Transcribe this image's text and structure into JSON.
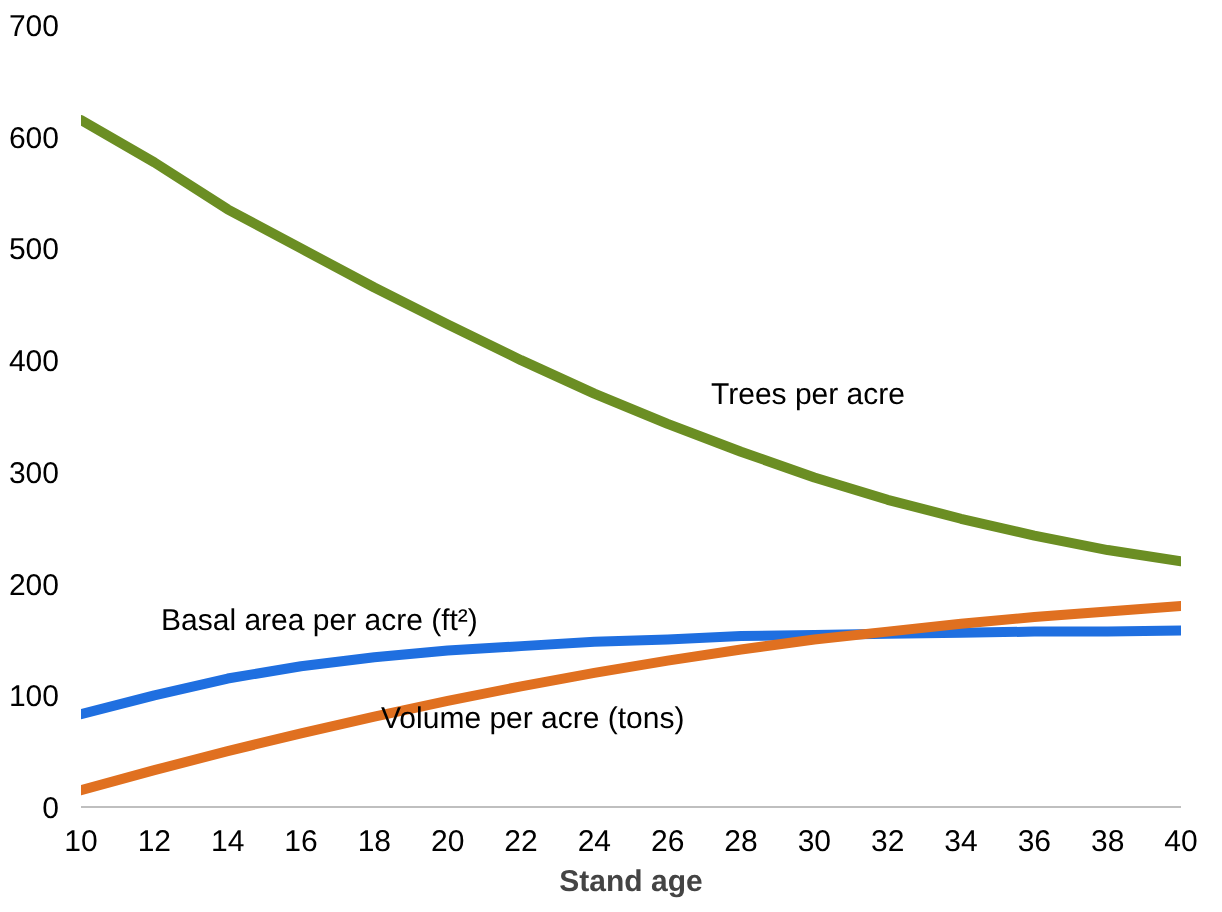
{
  "chart_data": {
    "type": "line",
    "xlabel": "Stand age",
    "x": [
      10,
      12,
      14,
      16,
      18,
      20,
      22,
      24,
      26,
      28,
      30,
      32,
      34,
      36,
      38,
      40
    ],
    "series": [
      {
        "name": "Trees per acre",
        "color": "#6b8e23",
        "values": [
          615,
          577,
          535,
          500,
          465,
          432,
          400,
          370,
          343,
          318,
          295,
          275,
          258,
          243,
          230,
          220
        ]
      },
      {
        "name": "Basal area per acre (ft²)",
        "color": "#1f6fe0",
        "values": [
          83,
          100,
          115,
          126,
          134,
          140,
          144,
          148,
          150,
          153,
          154,
          155,
          156,
          157,
          157,
          158
        ]
      },
      {
        "name": "Volume per acre (tons)",
        "color": "#e07020",
        "values": [
          15,
          33,
          50,
          66,
          81,
          95,
          108,
          120,
          131,
          141,
          150,
          157,
          164,
          170,
          175,
          180
        ]
      }
    ],
    "xlim": [
      10,
      40
    ],
    "xticks": [
      10,
      12,
      14,
      16,
      18,
      20,
      22,
      24,
      26,
      28,
      30,
      32,
      34,
      36,
      38,
      40
    ],
    "ylim": [
      0,
      700
    ],
    "yticks": [
      0,
      100,
      200,
      300,
      400,
      500,
      600,
      700
    ],
    "grid": false,
    "marker": "none",
    "line_style": "solid"
  }
}
